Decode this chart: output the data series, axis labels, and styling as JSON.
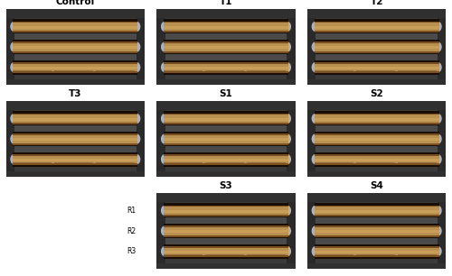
{
  "background_color": "#ffffff",
  "panels": [
    {
      "label": "Control",
      "row": 0,
      "col": 0,
      "show_rep": true
    },
    {
      "label": "T1",
      "row": 0,
      "col": 1,
      "show_rep": false
    },
    {
      "label": "T2",
      "row": 0,
      "col": 2,
      "show_rep": false
    },
    {
      "label": "T3",
      "row": 1,
      "col": 0,
      "show_rep": true
    },
    {
      "label": "S1",
      "row": 1,
      "col": 1,
      "show_rep": false
    },
    {
      "label": "S2",
      "row": 1,
      "col": 2,
      "show_rep": false
    },
    {
      "label": "S3",
      "row": 2,
      "col": 1,
      "show_rep": true
    },
    {
      "label": "S4",
      "row": 2,
      "col": 2,
      "show_rep": false
    }
  ],
  "label_fontsize": 7.5,
  "replicate_fontsize": 5.5,
  "label_fontweight": "bold",
  "fixture_color": "#3a3a3a",
  "fixture_light": "#5a5a5a",
  "fixture_highlight": "#707070",
  "specimen_main": "#b89050",
  "specimen_dark": "#1a0e04",
  "specimen_edge": "#7a5020",
  "specimen_light": "#d4a860",
  "bg_white": "#e8e8e8"
}
